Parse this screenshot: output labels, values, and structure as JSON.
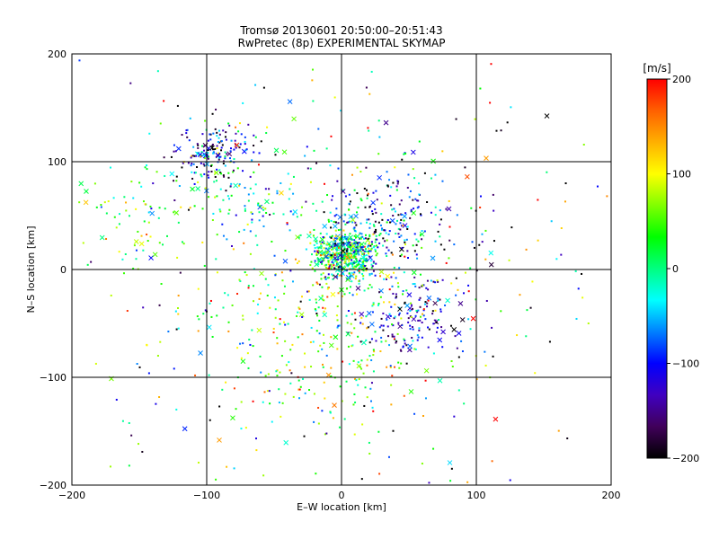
{
  "chart_data": {
    "type": "scatter",
    "title": "Tromsø 20130601 20:50:00–20:51:43",
    "subtitle": "RwPretec (8p) EXPERIMENTAL SKYMAP",
    "xlabel": "E–W location [km]",
    "ylabel": "N–S location [km]",
    "xlim": [
      -200,
      200
    ],
    "ylim": [
      -200,
      200
    ],
    "xticks": [
      -200,
      -100,
      0,
      100,
      200
    ],
    "yticks": [
      -200,
      -100,
      0,
      100,
      200
    ],
    "grid": true,
    "marker_styles": [
      "dot",
      "x"
    ],
    "colorbar": {
      "label": "[m/s]",
      "range": [
        -200,
        200
      ],
      "ticks": [
        200,
        100,
        0,
        -100,
        -200
      ],
      "colors": [
        "#000000",
        "#40005a",
        "#4000c0",
        "#0000ff",
        "#0080ff",
        "#00ffff",
        "#00ff80",
        "#00ff00",
        "#80ff00",
        "#ffff00",
        "#ffb000",
        "#ff6000",
        "#ff0000"
      ]
    },
    "clusters": [
      {
        "x": 2,
        "y": 15,
        "spread": 12,
        "count": 520,
        "velocity_mean": -5,
        "velocity_spread": 70
      },
      {
        "x": -95,
        "y": 108,
        "spread": 16,
        "count": 170,
        "velocity_mean": -110,
        "velocity_spread": 80
      },
      {
        "x": 55,
        "y": -40,
        "spread": 20,
        "count": 150,
        "velocity_mean": -130,
        "velocity_spread": 60
      },
      {
        "x": 40,
        "y": 45,
        "spread": 28,
        "count": 150,
        "velocity_mean": -120,
        "velocity_spread": 90
      },
      {
        "x": -70,
        "y": 70,
        "spread": 18,
        "count": 70,
        "velocity_mean": -20,
        "velocity_spread": 60
      },
      {
        "x": -20,
        "y": -55,
        "spread": 45,
        "count": 320,
        "velocity_mean": 40,
        "velocity_spread": 70
      },
      {
        "x": -150,
        "y": 45,
        "spread": 25,
        "count": 70,
        "velocity_mean": 40,
        "velocity_spread": 80
      },
      {
        "x": 20,
        "y": 50,
        "spread": 20,
        "count": 90,
        "velocity_mean": -60,
        "velocity_spread": 90
      },
      {
        "x": 0,
        "y": 0,
        "spread": 120,
        "count": 420,
        "velocity_mean": 0,
        "velocity_spread": 140
      }
    ]
  }
}
